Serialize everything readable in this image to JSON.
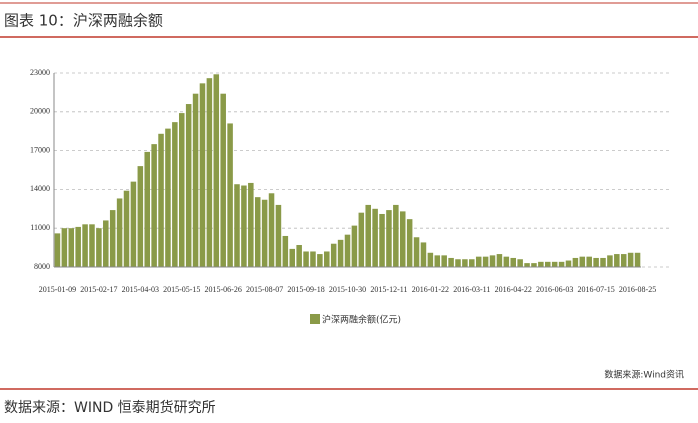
{
  "header": {
    "title": "图表 10：沪深两融余额"
  },
  "footer": {
    "source": "数据来源：WIND 恒泰期货研究所"
  },
  "chart_data": {
    "type": "bar",
    "categories": [
      "2015-01-09",
      null,
      null,
      null,
      null,
      null,
      "2015-02-17",
      null,
      null,
      null,
      null,
      null,
      "2015-04-03",
      null,
      null,
      null,
      null,
      null,
      "2015-05-15",
      null,
      null,
      null,
      null,
      null,
      "2015-06-26",
      null,
      null,
      null,
      null,
      null,
      "2015-08-07",
      null,
      null,
      null,
      null,
      null,
      "2015-09-18",
      null,
      null,
      null,
      null,
      null,
      "2015-10-30",
      null,
      null,
      null,
      null,
      null,
      "2015-12-11",
      null,
      null,
      null,
      null,
      null,
      "2016-01-22",
      null,
      null,
      null,
      null,
      null,
      "2016-03-11",
      null,
      null,
      null,
      null,
      null,
      "2016-04-22",
      null,
      null,
      null,
      null,
      null,
      "2016-06-03",
      null,
      null,
      null,
      null,
      null,
      "2016-07-15",
      null,
      null,
      null,
      null,
      null,
      "2016-08-25"
    ],
    "series": [
      {
        "name": "沪深两融余额(亿元)",
        "color": "#8a9a48",
        "values": [
          10600,
          11000,
          11000,
          11100,
          11300,
          11300,
          11000,
          11600,
          12400,
          13300,
          13900,
          14600,
          15800,
          16900,
          17500,
          18300,
          18700,
          19200,
          19900,
          20600,
          21400,
          22200,
          22600,
          22900,
          21400,
          19100,
          14400,
          14300,
          14500,
          13400,
          13200,
          13700,
          12800,
          10400,
          9400,
          9700,
          9200,
          9200,
          9000,
          9200,
          9800,
          10100,
          10500,
          11200,
          12200,
          12800,
          12500,
          12100,
          12400,
          12800,
          12300,
          11700,
          10300,
          9900,
          9100,
          8900,
          8900,
          8700,
          8600,
          8600,
          8600,
          8800,
          8800,
          8900,
          9000,
          8800,
          8700,
          8600,
          8300,
          8300,
          8400,
          8400,
          8400,
          8400,
          8500,
          8700,
          8800,
          8800,
          8700,
          8700,
          8900,
          9000,
          9000,
          9100,
          9100
        ]
      }
    ],
    "ylim": [
      8000,
      23000
    ],
    "yticks": [
      8000,
      11000,
      14000,
      17000,
      20000,
      23000
    ],
    "grid": true,
    "legend": "bottom",
    "source_note": "数据来源:Wind资讯"
  }
}
